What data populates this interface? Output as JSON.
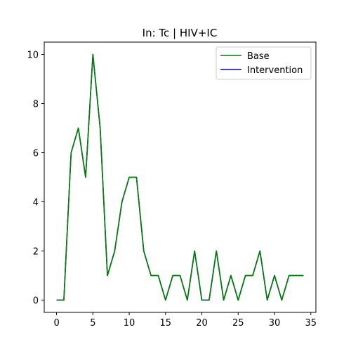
{
  "chart_data": {
    "type": "line",
    "title": "In: Tc | HIV+IC",
    "xlabel": "",
    "ylabel": "",
    "xlim": [
      -1.7,
      35.7
    ],
    "ylim": [
      -0.5,
      10.5
    ],
    "xticks": [
      0,
      5,
      10,
      15,
      20,
      25,
      30,
      35
    ],
    "yticks": [
      0,
      2,
      4,
      6,
      8,
      10
    ],
    "grid": false,
    "legend_position": "top-right",
    "x": [
      0,
      1,
      2,
      3,
      4,
      5,
      6,
      7,
      8,
      9,
      10,
      11,
      12,
      13,
      14,
      15,
      16,
      17,
      18,
      19,
      20,
      21,
      22,
      23,
      24,
      25,
      26,
      27,
      28,
      29,
      30,
      31,
      32,
      33,
      34
    ],
    "series": [
      {
        "name": "Intervention",
        "color": "#0000cc",
        "values": [
          0,
          0,
          6,
          7,
          5,
          10,
          7,
          1,
          2,
          4,
          5,
          5,
          2,
          1,
          1,
          0,
          1,
          1,
          0,
          2,
          0,
          0,
          2,
          0,
          1,
          0,
          1,
          1,
          2,
          0,
          1,
          0,
          1,
          1,
          1
        ]
      },
      {
        "name": "Base",
        "color": "#008000",
        "values": [
          0,
          0,
          6,
          7,
          5,
          10,
          7,
          1,
          2,
          4,
          5,
          5,
          2,
          1,
          1,
          0,
          1,
          1,
          0,
          2,
          0,
          0,
          2,
          0,
          1,
          0,
          1,
          1,
          2,
          0,
          1,
          0,
          1,
          1,
          1
        ]
      }
    ],
    "legend": [
      {
        "label": "Base",
        "color": "#008000"
      },
      {
        "label": "Intervention",
        "color": "#0000cc"
      }
    ]
  }
}
